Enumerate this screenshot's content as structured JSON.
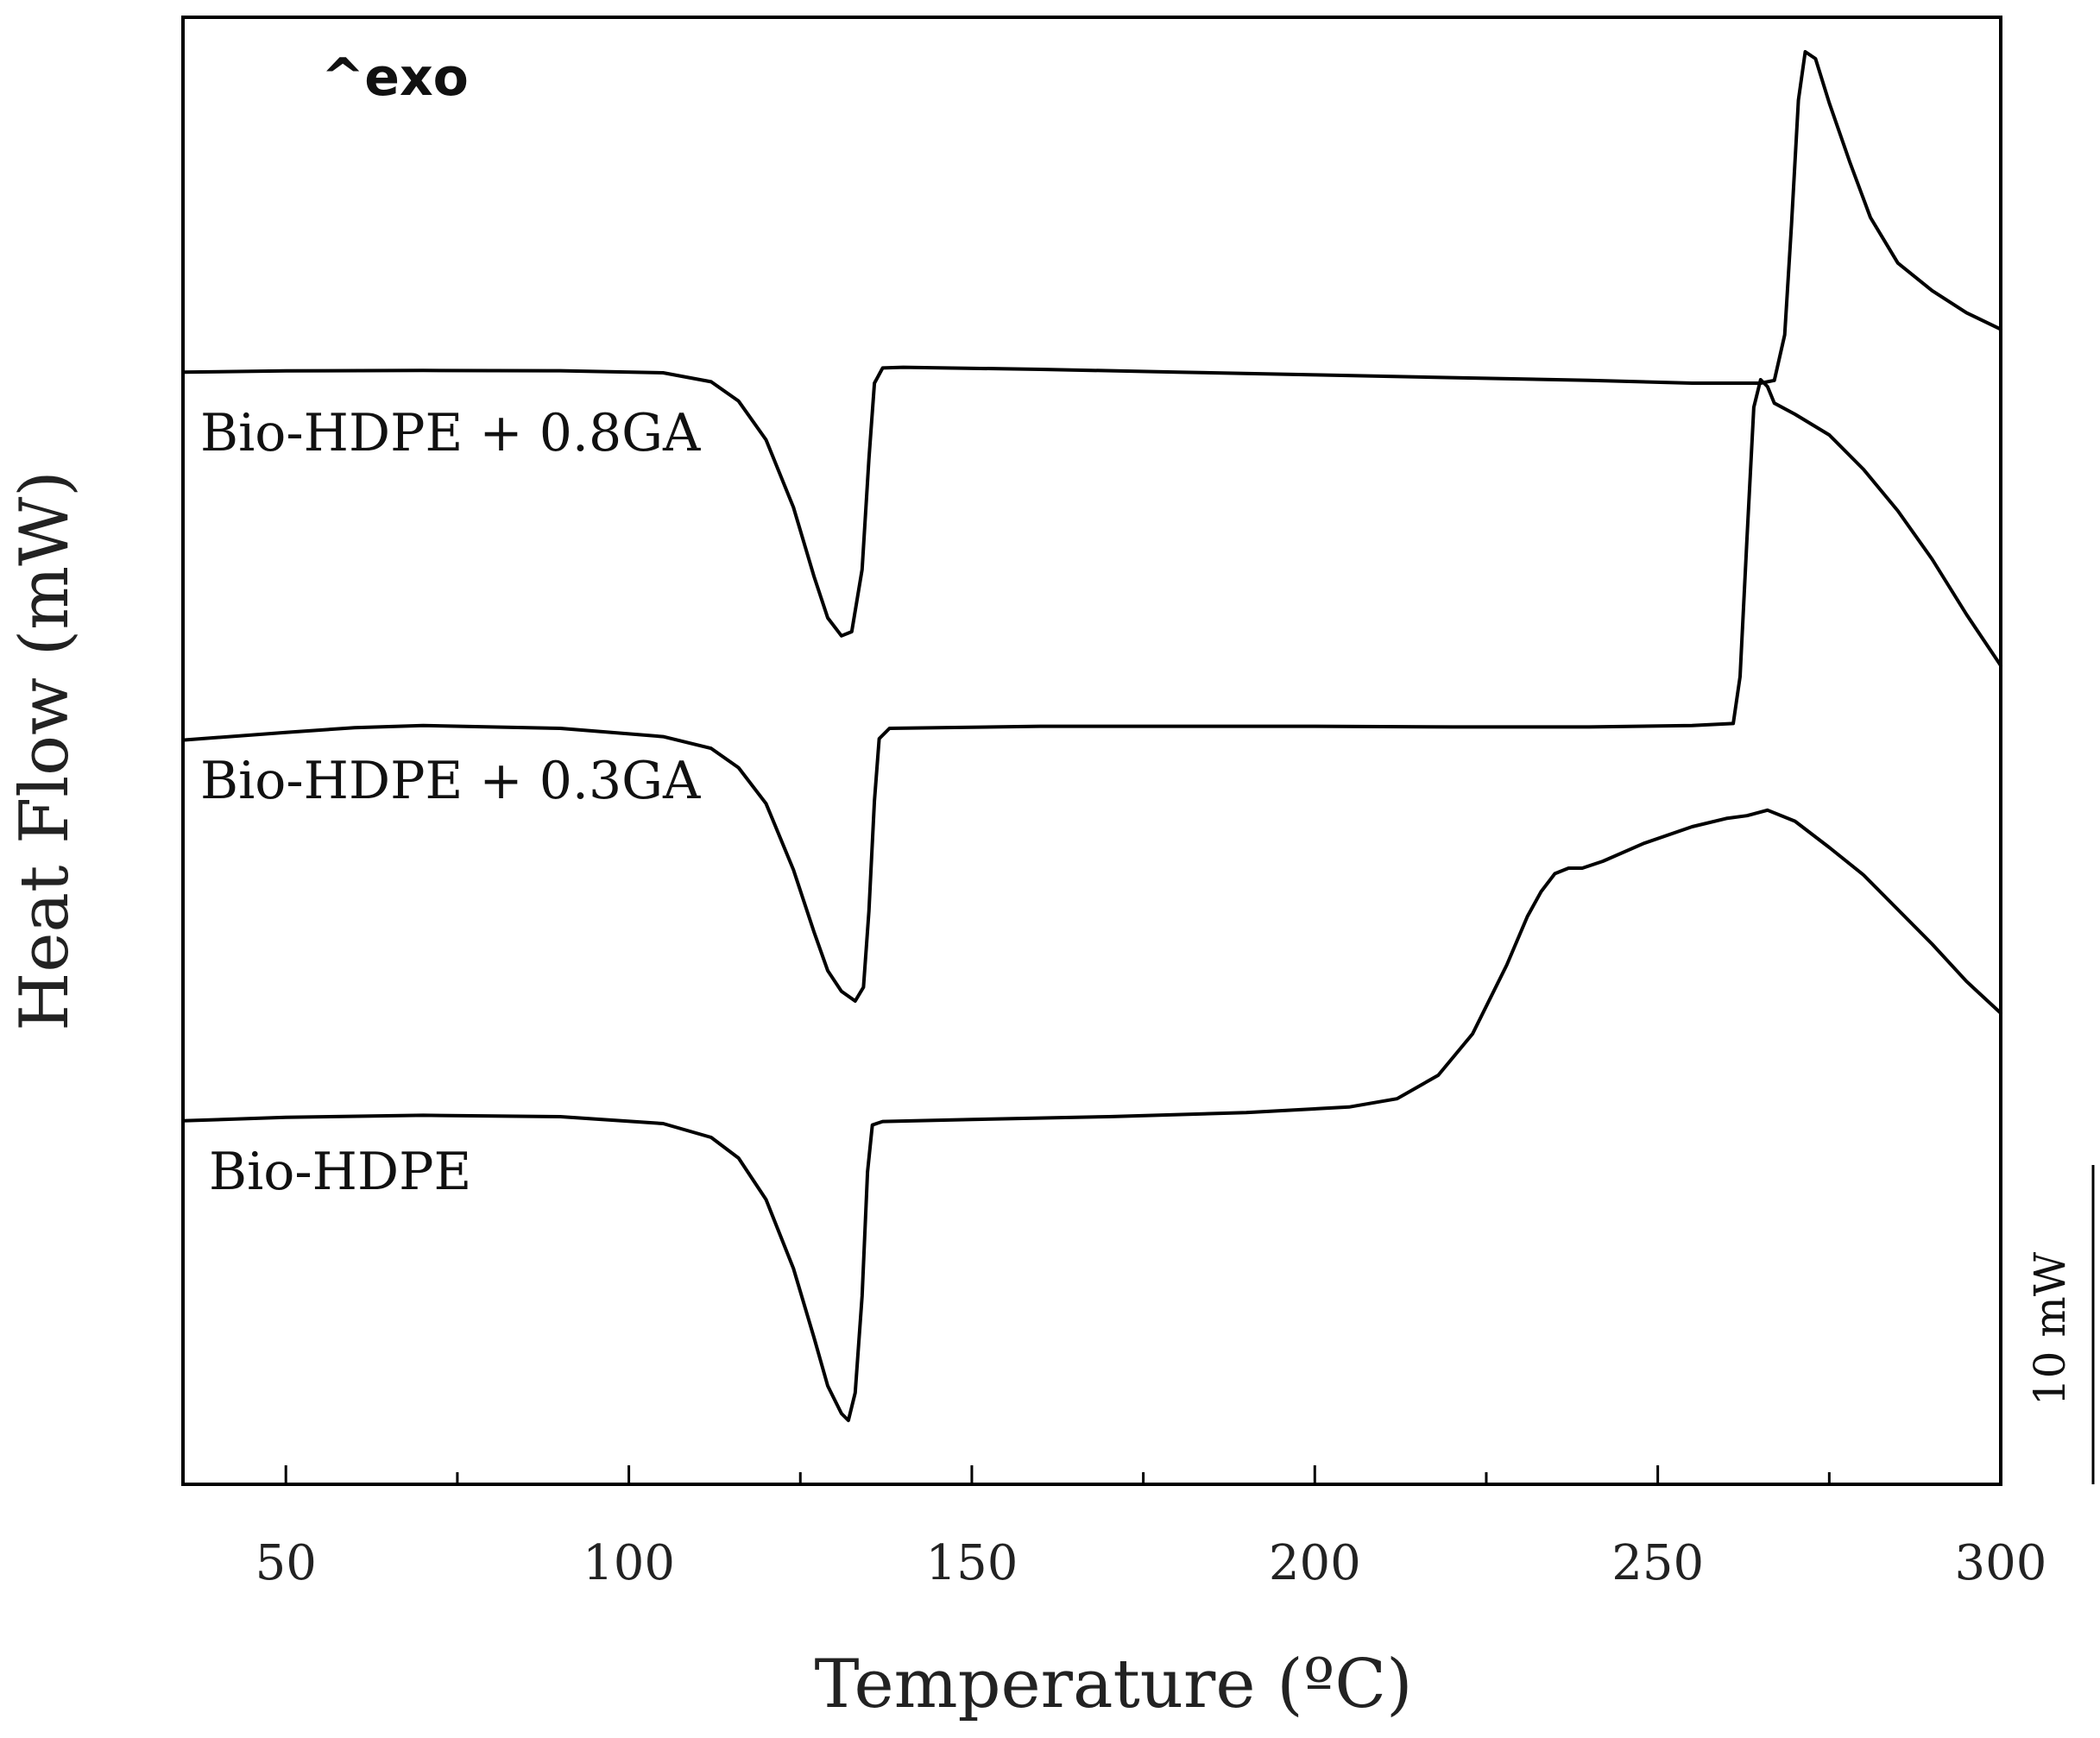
{
  "chart_data": {
    "type": "line",
    "xlabel": "Temperature (ºC)",
    "ylabel": "Heat Flow (mW)",
    "xlim": [
      35,
      300
    ],
    "xticks": [
      50,
      100,
      150,
      200,
      250,
      300
    ],
    "exo_marker": "^exo",
    "scale_bar_label": "10 mW",
    "series": [
      {
        "name": "Bio-HDPE + 0.8GA",
        "points": [
          [
            35,
            0.7
          ],
          [
            50,
            0.61
          ],
          [
            70,
            0.58
          ],
          [
            90,
            0.6
          ],
          [
            105,
            0.75
          ],
          [
            112,
            1.4
          ],
          [
            116,
            2.8
          ],
          [
            120,
            5.6
          ],
          [
            124,
            10.5
          ],
          [
            127,
            15.5
          ],
          [
            129,
            18.5
          ],
          [
            131,
            19.8
          ],
          [
            132.5,
            19.5
          ],
          [
            134,
            15
          ],
          [
            135,
            7
          ],
          [
            135.8,
            1.5
          ],
          [
            137,
            0.4
          ],
          [
            140,
            0.35
          ],
          [
            160,
            0.5
          ],
          [
            180,
            0.7
          ],
          [
            200,
            0.9
          ],
          [
            220,
            1.1
          ],
          [
            240,
            1.3
          ],
          [
            255,
            1.5
          ],
          [
            265,
            1.5
          ],
          [
            267,
            1.3
          ],
          [
            268.5,
            -2
          ],
          [
            269.5,
            -10
          ],
          [
            270.5,
            -19
          ],
          [
            271.5,
            -22.5
          ],
          [
            273,
            -22
          ],
          [
            275,
            -18.8
          ],
          [
            278,
            -14.5
          ],
          [
            281,
            -10.5
          ],
          [
            285,
            -7.2
          ],
          [
            290,
            -5.2
          ],
          [
            295,
            -3.6
          ],
          [
            300,
            -2.4
          ]
        ]
      },
      {
        "name": "Bio-HDPE + 0.3GA",
        "points": [
          [
            35,
            0.6
          ],
          [
            50,
            0.05
          ],
          [
            60,
            -0.3
          ],
          [
            70,
            -0.45
          ],
          [
            90,
            -0.25
          ],
          [
            105,
            0.35
          ],
          [
            112,
            1.2
          ],
          [
            116,
            2.6
          ],
          [
            120,
            5.2
          ],
          [
            124,
            10
          ],
          [
            127,
            14.5
          ],
          [
            129,
            17.3
          ],
          [
            131,
            18.8
          ],
          [
            133,
            19.5
          ],
          [
            134.2,
            18.5
          ],
          [
            135,
            13
          ],
          [
            135.8,
            5
          ],
          [
            136.5,
            0.5
          ],
          [
            138,
            -0.25
          ],
          [
            160,
            -0.4
          ],
          [
            180,
            -0.4
          ],
          [
            200,
            -0.4
          ],
          [
            220,
            -0.35
          ],
          [
            240,
            -0.35
          ],
          [
            255,
            -0.45
          ],
          [
            261,
            -0.6
          ],
          [
            262,
            -4
          ],
          [
            263,
            -14
          ],
          [
            264,
            -23.5
          ],
          [
            265,
            -25.5
          ],
          [
            266,
            -25
          ],
          [
            267,
            -23.8
          ],
          [
            270,
            -23
          ],
          [
            275,
            -21.5
          ],
          [
            280,
            -19
          ],
          [
            285,
            -16
          ],
          [
            290,
            -12.5
          ],
          [
            295,
            -8.5
          ],
          [
            300,
            -4.8
          ]
        ]
      },
      {
        "name": "Bio-HDPE",
        "points": [
          [
            35,
            0.3
          ],
          [
            50,
            0.05
          ],
          [
            70,
            -0.1
          ],
          [
            90,
            0.0
          ],
          [
            105,
            0.5
          ],
          [
            112,
            1.5
          ],
          [
            116,
            3.0
          ],
          [
            120,
            6.0
          ],
          [
            124,
            11
          ],
          [
            127,
            16
          ],
          [
            129,
            19.5
          ],
          [
            131,
            21.5
          ],
          [
            132,
            22
          ],
          [
            133,
            20
          ],
          [
            134,
            13
          ],
          [
            134.8,
            4
          ],
          [
            135.5,
            0.6
          ],
          [
            137,
            0.35
          ],
          [
            150,
            0.2
          ],
          [
            170,
            0.0
          ],
          [
            190,
            -0.3
          ],
          [
            205,
            -0.7
          ],
          [
            212,
            -1.3
          ],
          [
            218,
            -3.0
          ],
          [
            223,
            -6.0
          ],
          [
            228,
            -11
          ],
          [
            231,
            -14.5
          ],
          [
            233,
            -16.3
          ],
          [
            235,
            -17.6
          ],
          [
            237,
            -18.0
          ],
          [
            239,
            -18.0
          ],
          [
            242,
            -18.5
          ],
          [
            248,
            -19.8
          ],
          [
            255,
            -21.0
          ],
          [
            260,
            -21.6
          ],
          [
            263,
            -21.8
          ],
          [
            266,
            -22.2
          ],
          [
            270,
            -21.4
          ],
          [
            275,
            -19.5
          ],
          [
            280,
            -17.5
          ],
          [
            285,
            -15.0
          ],
          [
            290,
            -12.5
          ],
          [
            295,
            -9.8
          ],
          [
            300,
            -7.5
          ]
        ]
      }
    ]
  }
}
